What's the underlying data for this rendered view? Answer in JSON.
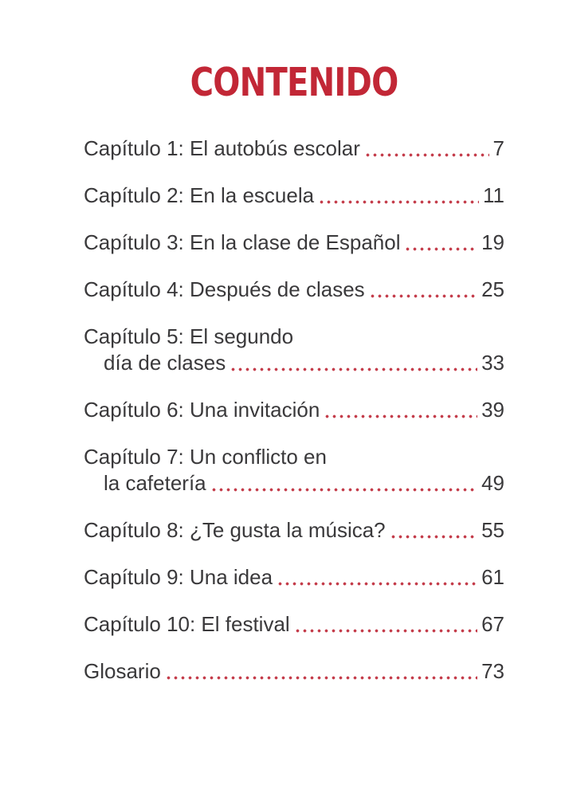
{
  "page": {
    "title": "CONTENIDO",
    "title_color": "#c22736",
    "text_color": "#3a393b",
    "dot_leader_color": "#c43d4b",
    "background_color": "#ffffff"
  },
  "toc": {
    "entries": [
      {
        "label": "Capítulo 1: El autobús escolar",
        "page": "7"
      },
      {
        "label": "Capítulo 2: En la escuela",
        "page": "11"
      },
      {
        "label": "Capítulo 3: En la clase de Español",
        "page": "19"
      },
      {
        "label": "Capítulo 4: Después de clases",
        "page": "25"
      },
      {
        "label": "Capítulo 5: El segundo",
        "label2": "día de clases",
        "page": "33"
      },
      {
        "label": "Capítulo 6: Una invitación",
        "page": "39"
      },
      {
        "label": "Capítulo 7: Un conflicto en",
        "label2": "la cafetería",
        "page": "49"
      },
      {
        "label": "Capítulo 8: ¿Te gusta la música?",
        "page": "55"
      },
      {
        "label": "Capítulo 9: Una idea",
        "page": "61"
      },
      {
        "label": "Capítulo 10: El festival",
        "page": "67"
      },
      {
        "label": "Glosario",
        "page": "73"
      }
    ]
  }
}
